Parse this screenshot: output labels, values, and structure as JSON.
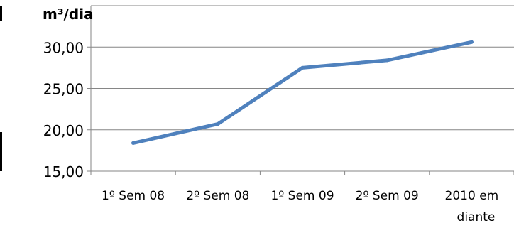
{
  "chart_data": {
    "type": "line",
    "title": "",
    "ylabel": "m³/dia",
    "xlabel": "",
    "categories": [
      [
        "1º Sem 08"
      ],
      [
        "2º Sem 08"
      ],
      [
        "1º Sem 09"
      ],
      [
        "2º Sem 09"
      ],
      [
        "2010 em",
        "diante"
      ]
    ],
    "series": [
      {
        "values": [
          18.4,
          20.7,
          27.5,
          28.4,
          30.6
        ]
      }
    ],
    "ylim": [
      15,
      35
    ],
    "yticks": [
      "15,00",
      "20,00",
      "25,00",
      "30,00"
    ],
    "grid": true,
    "legend": "none",
    "colors": {
      "line": "#4f81bd",
      "grid": "#868686",
      "axis": "#868686",
      "text": "#000000"
    }
  }
}
